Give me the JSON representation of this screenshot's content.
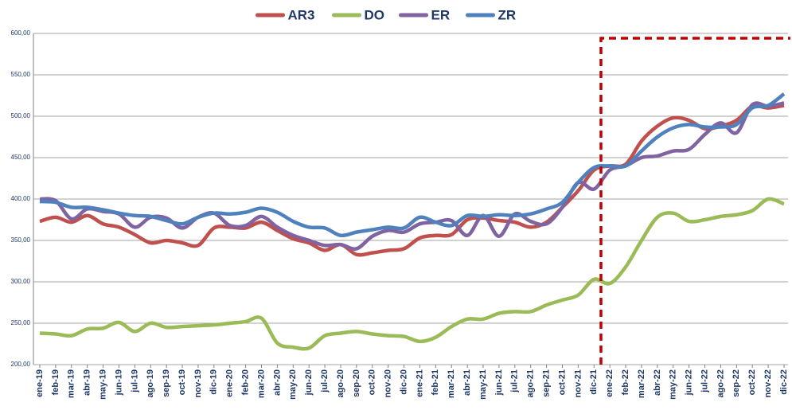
{
  "chart_data": {
    "type": "line",
    "categories": [
      "ene-19",
      "feb-19",
      "mar-19",
      "abr-19",
      "may-19",
      "jun-19",
      "jul-19",
      "ago-19",
      "sep-19",
      "oct-19",
      "nov-19",
      "dic-19",
      "ene-20",
      "feb-20",
      "mar-20",
      "abr-20",
      "may-20",
      "jun-20",
      "jul-20",
      "ago-20",
      "sep-20",
      "oct-20",
      "nov-20",
      "dic-20",
      "ene-21",
      "feb-21",
      "mar-21",
      "abr-21",
      "may-21",
      "jun-21",
      "jul-21",
      "ago-21",
      "sep-21",
      "oct-21",
      "nov-21",
      "dic-21",
      "ene-22",
      "feb-22",
      "mar-22",
      "abr-22",
      "may-22",
      "jun-22",
      "jul-22",
      "ago-22",
      "sep-22",
      "oct-22",
      "nov-22",
      "dic-22"
    ],
    "series": [
      {
        "name": "AR3",
        "color": "#c0504d",
        "values": [
          373,
          378,
          372,
          380,
          370,
          366,
          357,
          347,
          350,
          347,
          344,
          365,
          366,
          365,
          372,
          362,
          352,
          347,
          338,
          345,
          333,
          335,
          338,
          340,
          353,
          356,
          357,
          375,
          377,
          374,
          372,
          366,
          372,
          390,
          410,
          435,
          440,
          442,
          470,
          488,
          498,
          495,
          485,
          488,
          495,
          512,
          510,
          513
        ]
      },
      {
        "name": "DO",
        "color": "#9bbb59",
        "values": [
          238,
          237,
          235,
          243,
          244,
          251,
          240,
          250,
          245,
          246,
          247,
          248,
          250,
          252,
          256,
          226,
          221,
          220,
          235,
          238,
          240,
          237,
          235,
          234,
          228,
          233,
          246,
          255,
          255,
          262,
          264,
          264,
          272,
          278,
          284,
          303,
          298,
          318,
          350,
          378,
          383,
          373,
          375,
          379,
          381,
          386,
          400,
          394
        ]
      },
      {
        "name": "ER",
        "color": "#8064a2",
        "values": [
          400,
          398,
          376,
          388,
          385,
          382,
          366,
          378,
          377,
          365,
          378,
          383,
          368,
          368,
          379,
          366,
          356,
          350,
          344,
          345,
          340,
          355,
          362,
          360,
          370,
          372,
          374,
          356,
          380,
          355,
          382,
          373,
          370,
          390,
          420,
          412,
          435,
          440,
          450,
          452,
          458,
          460,
          478,
          492,
          480,
          514,
          512,
          516
        ]
      },
      {
        "name": "ZR",
        "color": "#4f81bd",
        "values": [
          397,
          396,
          390,
          390,
          387,
          383,
          380,
          379,
          374,
          370,
          378,
          383,
          382,
          384,
          389,
          384,
          373,
          366,
          365,
          356,
          360,
          363,
          366,
          365,
          378,
          372,
          368,
          380,
          379,
          381,
          380,
          382,
          388,
          396,
          420,
          438,
          440,
          440,
          458,
          475,
          486,
          490,
          487,
          487,
          490,
          510,
          513,
          527
        ]
      }
    ],
    "ylim": [
      200,
      600
    ],
    "yticks": [
      {
        "value": 200,
        "label": "200,00"
      },
      {
        "value": 250,
        "label": "250,00"
      },
      {
        "value": 300,
        "label": "300,00"
      },
      {
        "value": 350,
        "label": "350,00"
      },
      {
        "value": 400,
        "label": "400,00"
      },
      {
        "value": 450,
        "label": "450,00"
      },
      {
        "value": 500,
        "label": "500,00"
      },
      {
        "value": 550,
        "label": "550,00"
      },
      {
        "value": 600,
        "label": "600,00"
      }
    ],
    "grid": true
  }
}
